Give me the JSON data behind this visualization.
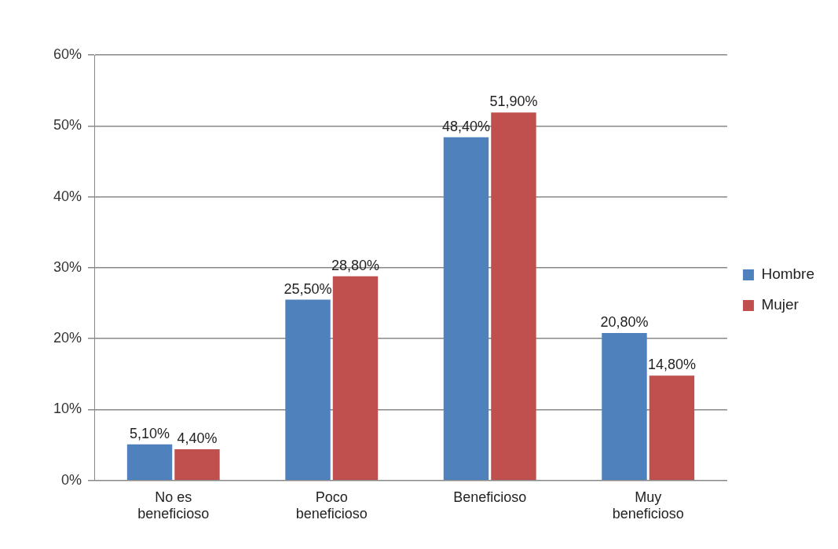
{
  "chart_data": {
    "type": "bar",
    "categories": [
      "No es beneficioso",
      "Poco beneficioso",
      "Beneficioso",
      "Muy beneficioso"
    ],
    "series": [
      {
        "name": "Hombre",
        "color": "#4f81bd",
        "values": [
          5.1,
          25.5,
          48.4,
          20.8
        ],
        "value_labels": [
          "5,10%",
          "25,50%",
          "48,40%",
          "20,80%"
        ]
      },
      {
        "name": "Mujer",
        "color": "#c0504d",
        "values": [
          4.4,
          28.8,
          51.9,
          14.8
        ],
        "value_labels": [
          "4,40%",
          "28,80%",
          "51,90%",
          "14,80%"
        ]
      }
    ],
    "ylim": [
      0,
      60
    ],
    "yticks": [
      {
        "value": 0,
        "label": "0%"
      },
      {
        "value": 10,
        "label": "10%"
      },
      {
        "value": 20,
        "label": "20%"
      },
      {
        "value": 30,
        "label": "30%"
      },
      {
        "value": 40,
        "label": "40%"
      },
      {
        "value": 50,
        "label": "50%"
      },
      {
        "value": 60,
        "label": "60%"
      }
    ],
    "grid": "y",
    "legend": "right"
  }
}
